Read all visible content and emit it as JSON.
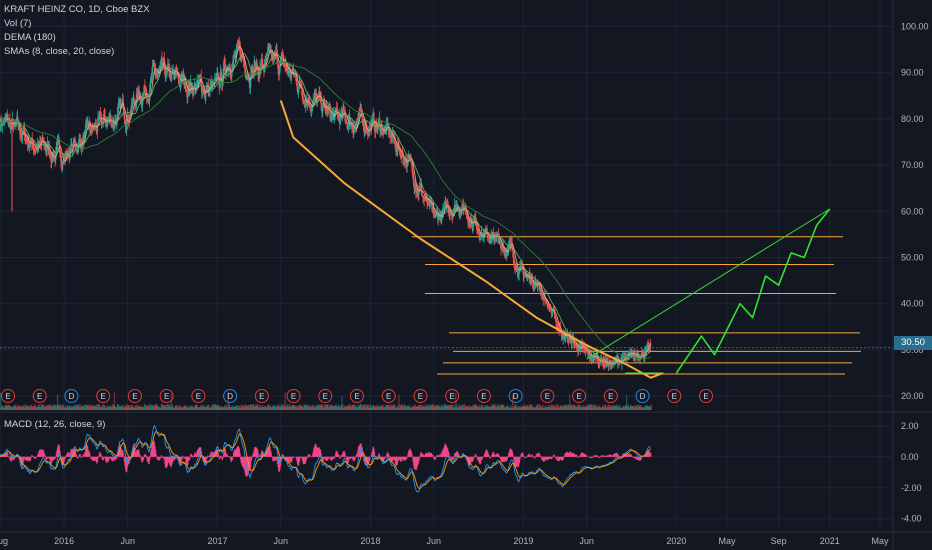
{
  "header": {
    "symbol": "KRAFT HEINZ CO, 1D, Cboe BZX",
    "indicator_vol": "Vol (7)",
    "indicator_dema": "DEMA (180)",
    "indicator_smas": "SMAs (8, close, 20, close)",
    "indicator_macd": "MACD (12, 26, close, 9)"
  },
  "current_price": "30.50",
  "colors": {
    "background": "#131722",
    "grid": "#1f2433",
    "axis_text": "#b2b5be",
    "candle_up": "#26a69a",
    "candle_down": "#ef5350",
    "sma_fast": "#ffa07a",
    "sma_slow": "#66bb6a",
    "dema": "#2e7d32",
    "drawing_orange": "#f7a73a",
    "drawing_green": "#33e033",
    "macd_line": "#2196f3",
    "signal_line": "#ff9800",
    "histogram": "#f7468a",
    "earnings_marker": "#e53935",
    "dividend_marker": "#1e88e5",
    "price_tag": "#2a6e8f"
  },
  "chart_data": [
    {
      "type": "line",
      "subtype": "candlestick",
      "title": "KRAFT HEINZ CO, 1D, Cboe BZX",
      "x_tick_labels": [
        "Aug",
        "2016",
        "Jun",
        "2017",
        "Jun",
        "2018",
        "Jun",
        "2019",
        "Jun",
        "2020",
        "May",
        "Sep",
        "2021",
        "May"
      ],
      "y_tick_labels": [
        "100.00",
        "90.00",
        "80.00",
        "70.00",
        "60.00",
        "50.00",
        "40.00",
        "30.00",
        "20.00"
      ],
      "ylim": [
        17.0,
        104.0
      ],
      "x": [
        "2015-08",
        "2015-11",
        "2016-01",
        "2016-03",
        "2016-06",
        "2016-08",
        "2016-10",
        "2017-01",
        "2017-02",
        "2017-04",
        "2017-06",
        "2017-08",
        "2017-10",
        "2018-01",
        "2018-02",
        "2018-04",
        "2018-06",
        "2018-08",
        "2018-10",
        "2018-12",
        "2019-01",
        "2019-02",
        "2019-04",
        "2019-06",
        "2019-08",
        "2019-10",
        "2019-11"
      ],
      "series": [
        {
          "name": "Price",
          "values": [
            80,
            74,
            72,
            77,
            82,
            89,
            88,
            86,
            94,
            91,
            92,
            86,
            80,
            79,
            78,
            71,
            58,
            62,
            55,
            52,
            46,
            45,
            34,
            29,
            27,
            29,
            30.5
          ]
        }
      ],
      "horizontal_levels": [
        54.5,
        48.5,
        42.2,
        33.7,
        29.7,
        27.2,
        24.8
      ],
      "projection": [
        {
          "x": "2020-01",
          "y": 25
        },
        {
          "x": "2020-03",
          "y": 33
        },
        {
          "x": "2020-04",
          "y": 29
        },
        {
          "x": "2020-06",
          "y": 40
        },
        {
          "x": "2020-07",
          "y": 37
        },
        {
          "x": "2020-08",
          "y": 46
        },
        {
          "x": "2020-09",
          "y": 44
        },
        {
          "x": "2020-10",
          "y": 51
        },
        {
          "x": "2020-11",
          "y": 50
        },
        {
          "x": "2020-12",
          "y": 57
        },
        {
          "x": "2021-01",
          "y": 60.5
        }
      ],
      "event_markers": [
        "E",
        "E",
        "D",
        "E",
        "E",
        "E",
        "E",
        "D",
        "E",
        "E",
        "E",
        "E",
        "E",
        "E",
        "E",
        "E",
        "D",
        "E",
        "E",
        "E",
        "D",
        "E",
        "E"
      ],
      "grid": true
    },
    {
      "type": "line",
      "title": "MACD (12, 26, close, 9)",
      "y_tick_labels": [
        "2.00",
        "0.00",
        "-2.00",
        "-4.00"
      ],
      "ylim": [
        -4.6,
        2.7
      ],
      "grid": true
    }
  ]
}
